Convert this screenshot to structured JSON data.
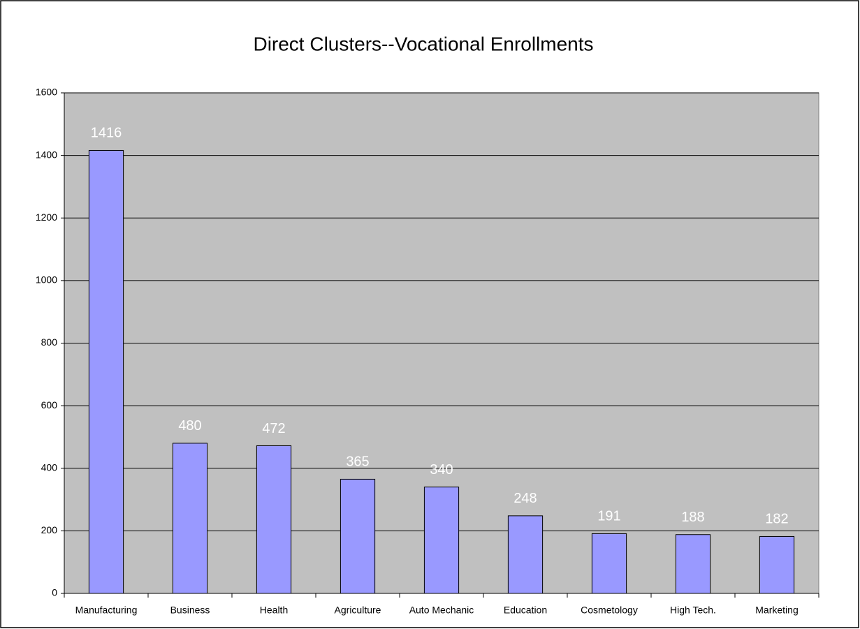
{
  "chart_data": {
    "type": "bar",
    "title": "Direct Clusters--Vocational Enrollments",
    "categories": [
      "Manufacturing",
      "Business",
      "Health",
      "Agriculture",
      "Auto Mechanic",
      "Education",
      "Cosmetology",
      "High Tech.",
      "Marketing"
    ],
    "values": [
      1416,
      480,
      472,
      365,
      340,
      248,
      191,
      188,
      182
    ],
    "color": "#9999ff",
    "ylim": [
      0,
      1600
    ],
    "yticks": [
      0,
      200,
      400,
      600,
      800,
      1000,
      1200,
      1400,
      1600
    ],
    "grid": true
  }
}
